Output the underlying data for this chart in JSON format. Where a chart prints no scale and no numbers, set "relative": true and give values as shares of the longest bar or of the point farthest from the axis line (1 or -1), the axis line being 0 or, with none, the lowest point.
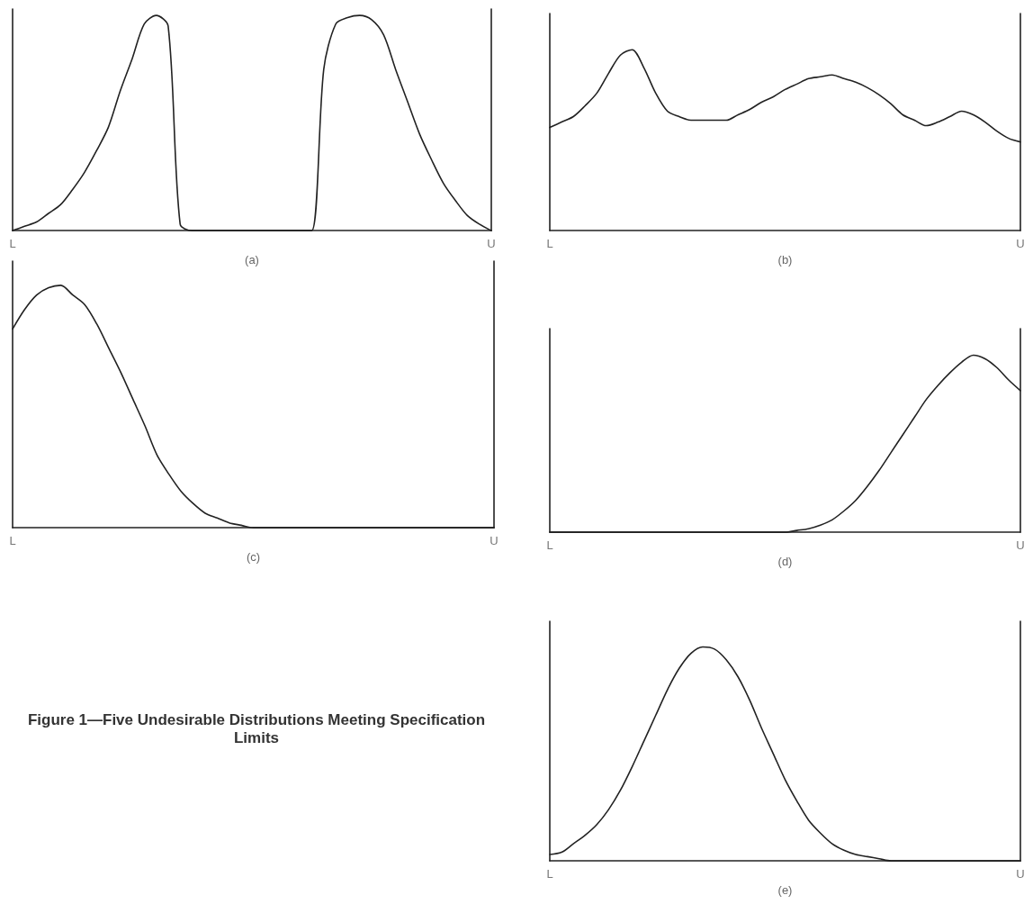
{
  "chart_data": [
    {
      "type": "line",
      "relative": true,
      "marker": "none",
      "xlabel": "(a)",
      "categories": [
        "L",
        null,
        null,
        null,
        null,
        null,
        null,
        null,
        null,
        null,
        null,
        null,
        null,
        null,
        null,
        null,
        null,
        null,
        null,
        null,
        null,
        null,
        null,
        null,
        null,
        null,
        null,
        null,
        null,
        null,
        null,
        null,
        null,
        null,
        null,
        null,
        null,
        null,
        null,
        null,
        "U"
      ],
      "series": [
        {
          "color": "#222222",
          "values": [
            0,
            0.02,
            0.04,
            0.08,
            0.12,
            0.19,
            0.27,
            0.37,
            0.48,
            0.65,
            0.8,
            0.96,
            1,
            0.95,
            0.03,
            0,
            0,
            0,
            0,
            0,
            0,
            0,
            0,
            0,
            0,
            0,
            0.75,
            0.96,
            0.99,
            1,
            0.98,
            0.91,
            0.75,
            0.6,
            0.45,
            0.33,
            0.22,
            0.14,
            0.07,
            0.03,
            0
          ]
        }
      ]
    },
    {
      "type": "line",
      "relative": true,
      "marker": "none",
      "xlabel": "(b)",
      "categories": [
        "L",
        null,
        null,
        null,
        null,
        null,
        null,
        null,
        null,
        null,
        null,
        null,
        null,
        null,
        null,
        null,
        null,
        null,
        null,
        null,
        null,
        null,
        null,
        null,
        null,
        null,
        null,
        null,
        null,
        null,
        null,
        null,
        null,
        null,
        null,
        null,
        null,
        null,
        null,
        null,
        "U"
      ],
      "series": [
        {
          "color": "#222222",
          "values": [
            0.57,
            0.6,
            0.63,
            0.69,
            0.76,
            0.87,
            0.97,
            1,
            0.9,
            0.76,
            0.66,
            0.63,
            0.61,
            0.61,
            0.61,
            0.61,
            0.64,
            0.67,
            0.71,
            0.74,
            0.78,
            0.81,
            0.84,
            0.85,
            0.86,
            0.84,
            0.82,
            0.79,
            0.75,
            0.7,
            0.64,
            0.61,
            0.58,
            0.6,
            0.63,
            0.66,
            0.64,
            0.6,
            0.55,
            0.51,
            0.49
          ]
        }
      ]
    },
    {
      "type": "line",
      "relative": true,
      "marker": "none",
      "xlabel": "(c)",
      "categories": [
        "L",
        null,
        null,
        null,
        null,
        null,
        null,
        null,
        null,
        null,
        null,
        null,
        null,
        null,
        null,
        null,
        null,
        null,
        null,
        null,
        null,
        null,
        null,
        null,
        null,
        null,
        null,
        null,
        null,
        null,
        null,
        null,
        null,
        null,
        null,
        null,
        null,
        null,
        null,
        null,
        "U"
      ],
      "series": [
        {
          "color": "#222222",
          "values": [
            0.82,
            0.9,
            0.96,
            0.99,
            1,
            0.96,
            0.92,
            0.84,
            0.74,
            0.64,
            0.53,
            0.42,
            0.3,
            0.22,
            0.15,
            0.1,
            0.06,
            0.04,
            0.02,
            0.01,
            0,
            0,
            0,
            0,
            0,
            0,
            0,
            0,
            0,
            0,
            0,
            0,
            0,
            0,
            0,
            0,
            0,
            0,
            0,
            0,
            0
          ]
        }
      ]
    },
    {
      "type": "line",
      "relative": true,
      "marker": "none",
      "xlabel": "(d)",
      "categories": [
        "L",
        null,
        null,
        null,
        null,
        null,
        null,
        null,
        null,
        null,
        null,
        null,
        null,
        null,
        null,
        null,
        null,
        null,
        null,
        null,
        null,
        null,
        null,
        null,
        null,
        null,
        null,
        null,
        null,
        null,
        null,
        null,
        null,
        null,
        null,
        null,
        null,
        null,
        null,
        null,
        "U"
      ],
      "series": [
        {
          "color": "#222222",
          "values": [
            0,
            0,
            0,
            0,
            0,
            0,
            0,
            0,
            0,
            0,
            0,
            0,
            0,
            0,
            0,
            0,
            0,
            0,
            0,
            0,
            0,
            0.01,
            0.02,
            0.04,
            0.07,
            0.12,
            0.18,
            0.26,
            0.35,
            0.45,
            0.55,
            0.65,
            0.75,
            0.83,
            0.9,
            0.96,
            1,
            0.98,
            0.93,
            0.86,
            0.8
          ]
        }
      ]
    },
    {
      "type": "other",
      "title": "Figure 1—Five Undesirable Distributions Meeting Specification Limits"
    },
    {
      "type": "line",
      "relative": true,
      "marker": "none",
      "xlabel": "(e)",
      "categories": [
        "L",
        null,
        null,
        null,
        null,
        null,
        null,
        null,
        null,
        null,
        null,
        null,
        null,
        null,
        null,
        null,
        null,
        null,
        null,
        null,
        null,
        null,
        null,
        null,
        null,
        null,
        null,
        null,
        null,
        null,
        null,
        null,
        null,
        null,
        null,
        null,
        null,
        null,
        null,
        null,
        "U"
      ],
      "series": [
        {
          "color": "#222222",
          "values": [
            0.03,
            0.04,
            0.08,
            0.12,
            0.17,
            0.24,
            0.33,
            0.44,
            0.56,
            0.68,
            0.8,
            0.9,
            0.97,
            1,
            0.99,
            0.94,
            0.86,
            0.75,
            0.62,
            0.5,
            0.38,
            0.28,
            0.19,
            0.13,
            0.08,
            0.05,
            0.03,
            0.02,
            0.01,
            0,
            0,
            0,
            0,
            0,
            0,
            0,
            0,
            0,
            0,
            0,
            0
          ]
        }
      ]
    }
  ]
}
